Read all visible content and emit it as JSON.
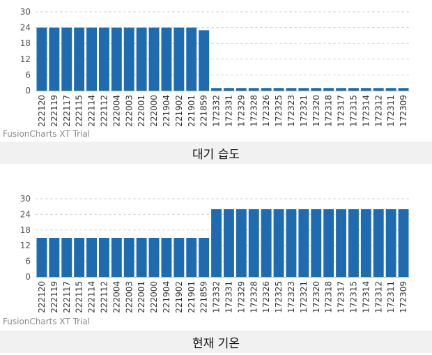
{
  "chart_data": [
    {
      "type": "bar",
      "title": "",
      "caption": "대기 습도",
      "watermark": "FusionCharts XT Trial",
      "categories": [
        "222120",
        "222119",
        "222117",
        "222115",
        "222114",
        "222112",
        "222004",
        "222003",
        "222001",
        "222000",
        "221904",
        "221902",
        "221901",
        "221859",
        "172332",
        "172331",
        "172329",
        "172328",
        "172326",
        "172325",
        "172323",
        "172321",
        "172320",
        "172318",
        "172317",
        "172315",
        "172314",
        "172312",
        "172311",
        "172309"
      ],
      "values": [
        24,
        24,
        24,
        24,
        24,
        24,
        24,
        24,
        24,
        24,
        24,
        24,
        24,
        23,
        1,
        1,
        1,
        1,
        1,
        1,
        1,
        1,
        1,
        1,
        1,
        1,
        1,
        1,
        1,
        1
      ],
      "ylim": [
        0,
        30
      ],
      "yticks": [
        0,
        6,
        12,
        18,
        24,
        30
      ],
      "grid": true,
      "bar_color": "#1f6bb0"
    },
    {
      "type": "bar",
      "title": "",
      "caption": "현재 기온",
      "watermark": "FusionCharts XT Trial",
      "categories": [
        "222120",
        "222119",
        "222117",
        "222115",
        "222114",
        "222112",
        "222004",
        "222003",
        "222001",
        "222000",
        "221904",
        "221902",
        "221901",
        "221859",
        "172332",
        "172331",
        "172329",
        "172328",
        "172326",
        "172325",
        "172323",
        "172321",
        "172320",
        "172318",
        "172317",
        "172315",
        "172314",
        "172312",
        "172311",
        "172309"
      ],
      "values": [
        15,
        15,
        15,
        15,
        15,
        15,
        15,
        15,
        15,
        15,
        15,
        15,
        15,
        15,
        26,
        26,
        26,
        26,
        26,
        26,
        26,
        26,
        26,
        26,
        26,
        26,
        26,
        26,
        26,
        26
      ],
      "ylim": [
        0,
        30
      ],
      "yticks": [
        0,
        6,
        12,
        18,
        24,
        30
      ],
      "grid": true,
      "bar_color": "#1f6bb0"
    }
  ]
}
